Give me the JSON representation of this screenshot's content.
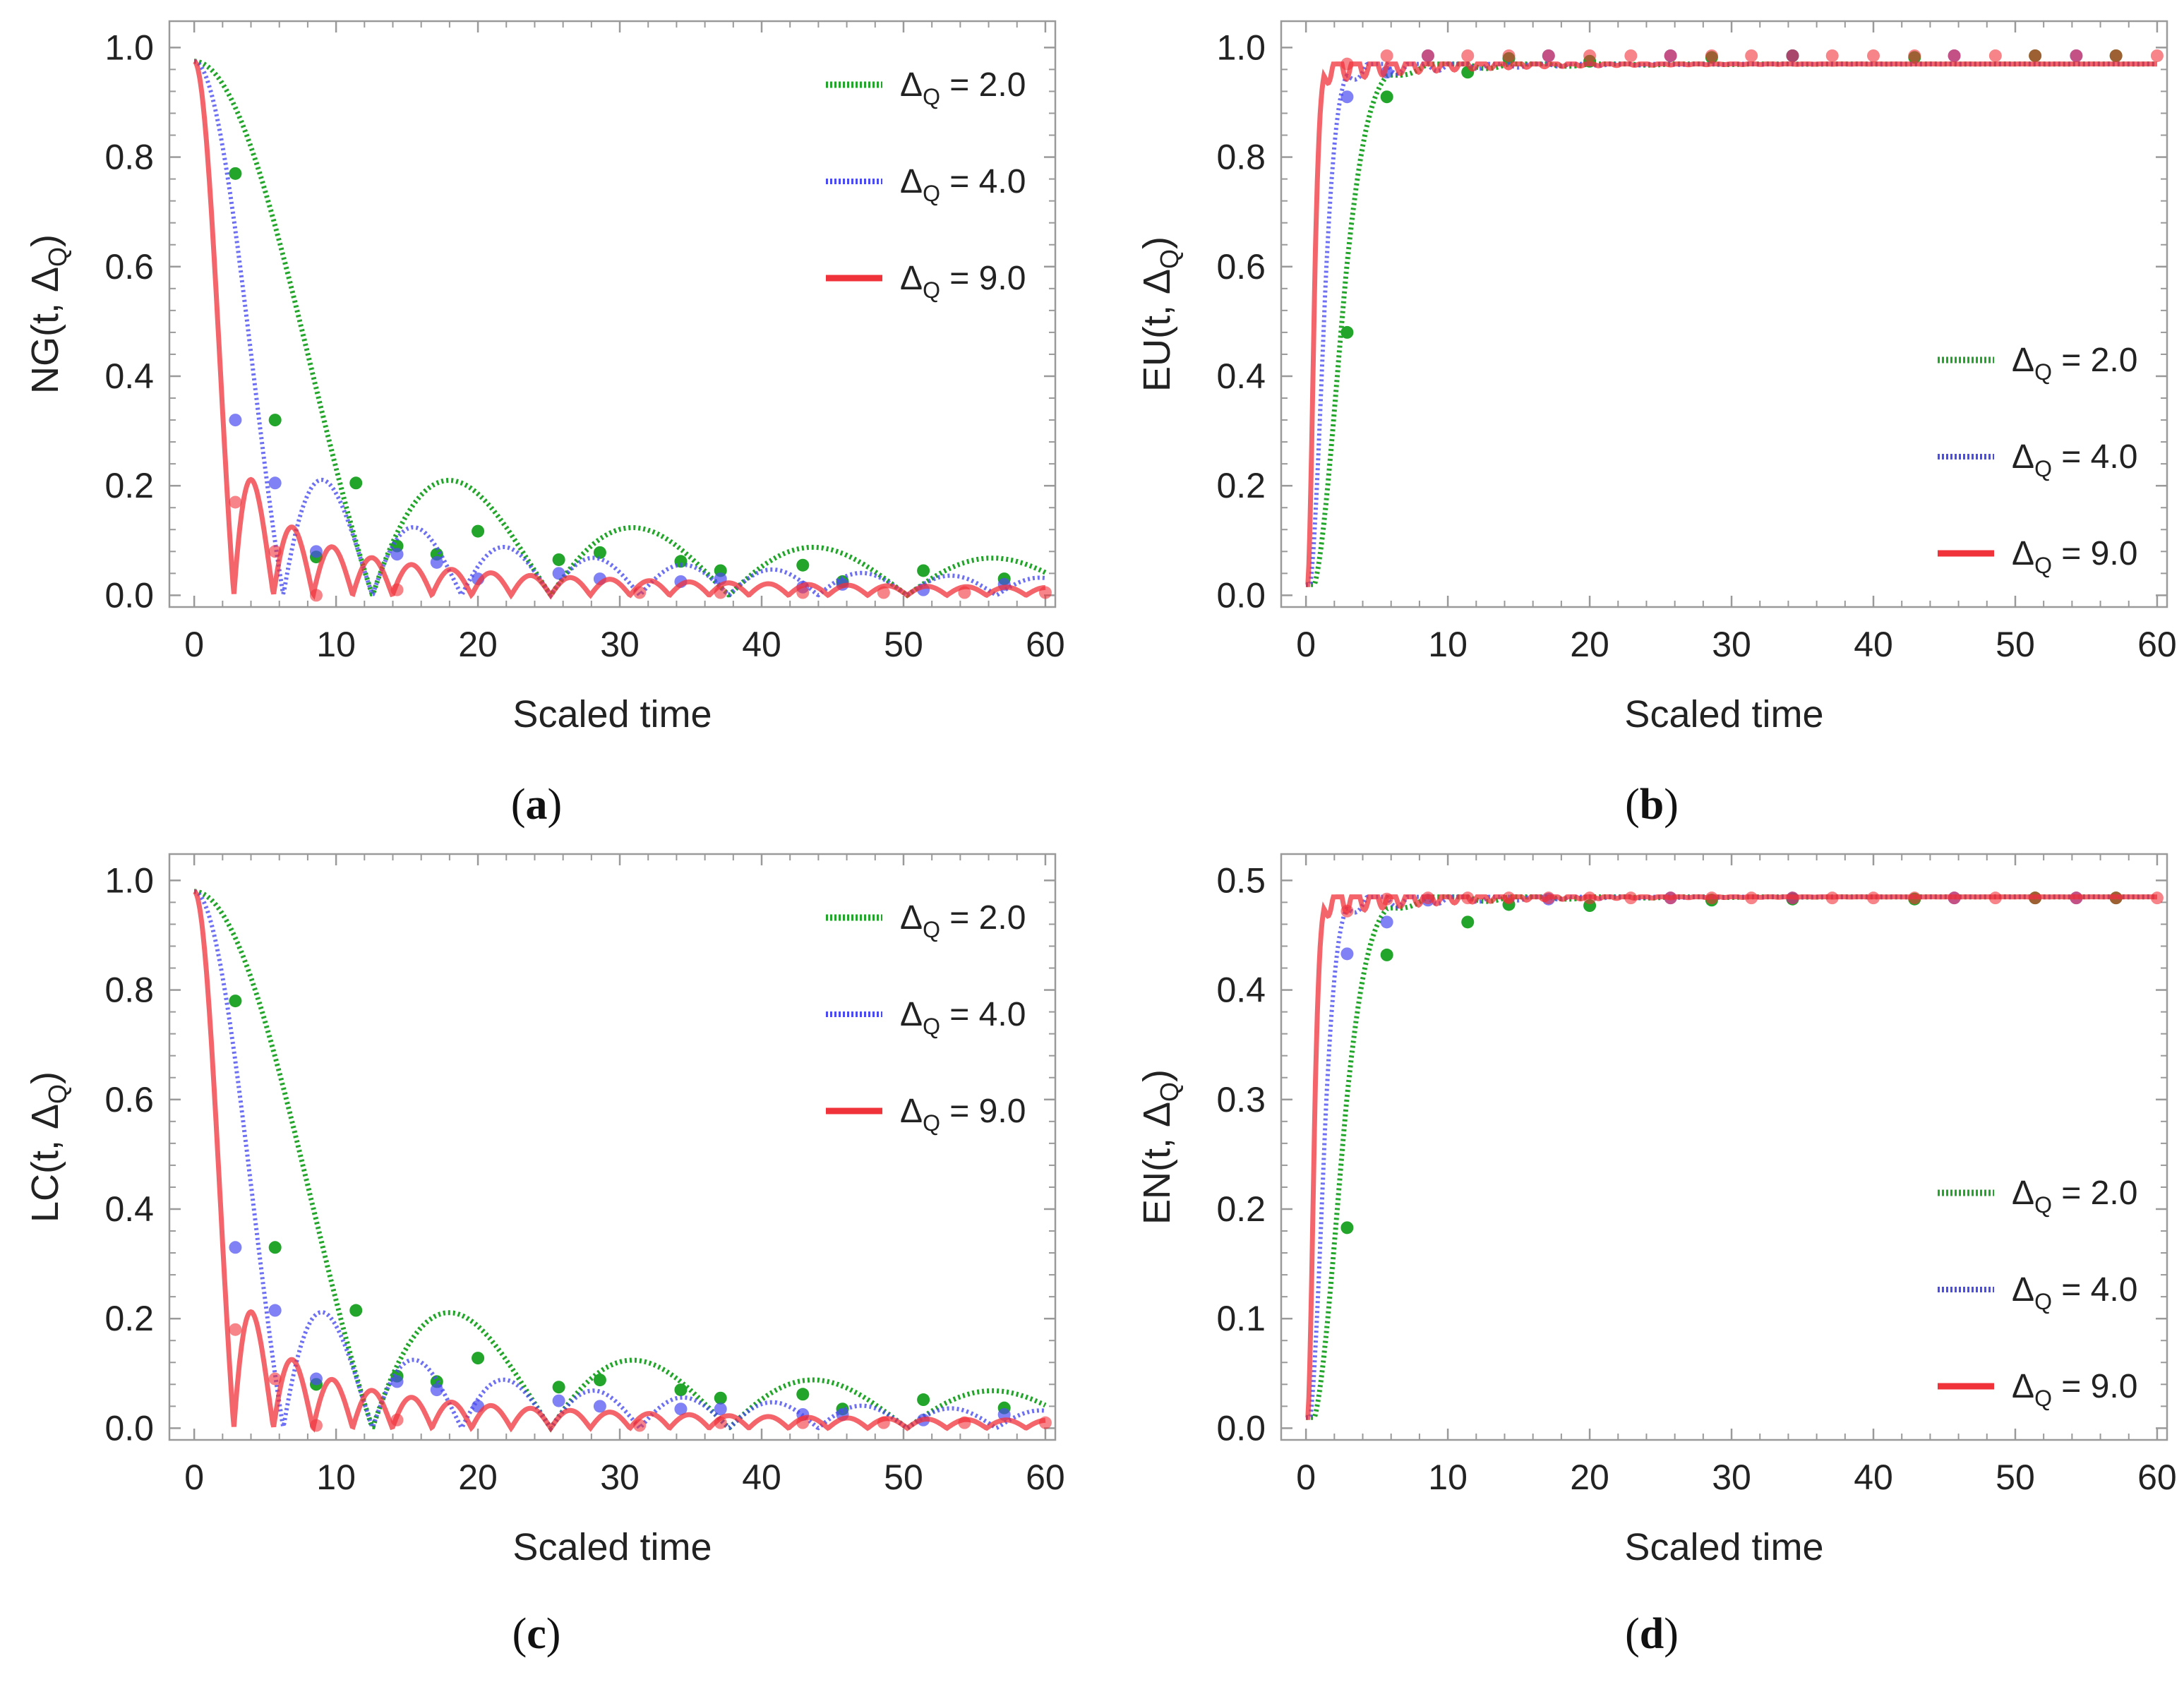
{
  "figure": {
    "colors": {
      "green": "#22a52a",
      "blue": "#4a4cf0",
      "red": "#f0323a",
      "frame": "#9a9a9a",
      "text": "#222222"
    }
  },
  "chart_data": [
    {
      "type": "line",
      "panel_caption": "a",
      "ylabel": "NG(t, Δ",
      "ylabel_sub": "Q",
      "xlabel": "Scaled time",
      "xlim": [
        0,
        60
      ],
      "ylim": [
        0,
        1.0
      ],
      "xticks": [
        "0",
        "10",
        "20",
        "30",
        "40",
        "50",
        "60"
      ],
      "yticks": [
        "0.0",
        "0.2",
        "0.4",
        "0.6",
        "0.8",
        "1.0"
      ],
      "legend_position": "top-right",
      "series": [
        {
          "name": "Δ_Q = 2.0",
          "label_main": "Δ",
          "label_sub": "Q",
          "label_value": " = 2.0",
          "color": "green",
          "style": "dotted",
          "markers": [
            [
              2.9,
              0.77
            ],
            [
              5.7,
              0.32
            ],
            [
              8.6,
              0.07
            ],
            [
              11.4,
              0.205
            ],
            [
              14.3,
              0.09
            ],
            [
              17.1,
              0.075
            ],
            [
              20.0,
              0.117
            ],
            [
              25.7,
              0.065
            ],
            [
              28.6,
              0.078
            ],
            [
              34.3,
              0.062
            ],
            [
              37.1,
              0.045
            ],
            [
              42.9,
              0.055
            ],
            [
              45.7,
              0.025
            ],
            [
              51.4,
              0.045
            ],
            [
              57.1,
              0.03
            ]
          ]
        },
        {
          "name": "Δ_Q = 4.0",
          "label_main": "Δ",
          "label_sub": "Q",
          "label_value": " = 4.0",
          "color": "blue",
          "style": "dotted",
          "markers": [
            [
              2.9,
              0.32
            ],
            [
              5.7,
              0.205
            ],
            [
              8.6,
              0.08
            ],
            [
              14.3,
              0.075
            ],
            [
              17.1,
              0.06
            ],
            [
              20.0,
              0.03
            ],
            [
              25.7,
              0.04
            ],
            [
              28.6,
              0.03
            ],
            [
              34.3,
              0.025
            ],
            [
              37.1,
              0.03
            ],
            [
              42.9,
              0.015
            ],
            [
              45.7,
              0.02
            ],
            [
              51.4,
              0.01
            ],
            [
              57.1,
              0.02
            ]
          ]
        },
        {
          "name": "Δ_Q = 9.0",
          "label_main": "Δ",
          "label_sub": "Q",
          "label_value": " = 9.0",
          "color": "red",
          "style": "solid",
          "markers": [
            [
              2.9,
              0.17
            ],
            [
              5.7,
              0.08
            ],
            [
              8.6,
              0.0
            ],
            [
              14.3,
              0.01
            ],
            [
              31.4,
              0.005
            ],
            [
              37.1,
              0.005
            ],
            [
              42.9,
              0.005
            ],
            [
              48.6,
              0.005
            ],
            [
              54.3,
              0.005
            ],
            [
              60.0,
              0.005
            ]
          ]
        }
      ]
    },
    {
      "type": "line",
      "panel_caption": "b",
      "ylabel": "EU(t, Δ",
      "ylabel_sub": "Q",
      "xlabel": "Scaled time",
      "xlim": [
        0,
        60
      ],
      "ylim": [
        0,
        1.0
      ],
      "xticks": [
        "0",
        "10",
        "20",
        "30",
        "40",
        "50",
        "60"
      ],
      "yticks": [
        "0.0",
        "0.2",
        "0.4",
        "0.6",
        "0.8",
        "1.0"
      ],
      "legend_position": "center-right",
      "series": [
        {
          "name": "Δ_Q = 2.0",
          "label_main": "Δ",
          "label_sub": "Q",
          "label_value": " = 2.0",
          "color": "green",
          "style": "dotted",
          "markers": [
            [
              2.9,
              0.48
            ],
            [
              5.7,
              0.91
            ],
            [
              11.4,
              0.955
            ],
            [
              14.3,
              0.98
            ],
            [
              20.0,
              0.975
            ],
            [
              28.6,
              0.982
            ],
            [
              34.3,
              0.985
            ],
            [
              42.9,
              0.982
            ],
            [
              51.4,
              0.985
            ],
            [
              57.1,
              0.985
            ]
          ]
        },
        {
          "name": "Δ_Q = 4.0",
          "label_main": "Δ",
          "label_sub": "Q",
          "label_value": " = 4.0",
          "color": "blue",
          "style": "dotted",
          "markers": [
            [
              2.9,
              0.91
            ],
            [
              5.7,
              0.955
            ],
            [
              8.6,
              0.985
            ],
            [
              17.1,
              0.985
            ],
            [
              25.7,
              0.985
            ],
            [
              34.3,
              0.985
            ],
            [
              45.7,
              0.985
            ],
            [
              54.3,
              0.985
            ]
          ]
        },
        {
          "name": "Δ_Q = 9.0",
          "label_main": "Δ",
          "label_sub": "Q",
          "label_value": " = 9.0",
          "color": "red",
          "style": "solid",
          "markers": [
            [
              2.9,
              0.97
            ],
            [
              5.7,
              0.985
            ],
            [
              8.6,
              0.985
            ],
            [
              11.4,
              0.985
            ],
            [
              14.3,
              0.985
            ],
            [
              17.1,
              0.985
            ],
            [
              20.0,
              0.985
            ],
            [
              22.9,
              0.985
            ],
            [
              25.7,
              0.985
            ],
            [
              28.6,
              0.985
            ],
            [
              31.4,
              0.985
            ],
            [
              34.3,
              0.985
            ],
            [
              37.1,
              0.985
            ],
            [
              40.0,
              0.985
            ],
            [
              42.9,
              0.985
            ],
            [
              45.7,
              0.985
            ],
            [
              48.6,
              0.985
            ],
            [
              51.4,
              0.985
            ],
            [
              54.3,
              0.985
            ],
            [
              57.1,
              0.985
            ],
            [
              60.0,
              0.985
            ]
          ]
        }
      ]
    },
    {
      "type": "line",
      "panel_caption": "c",
      "ylabel": "LC(t, Δ",
      "ylabel_sub": "Q",
      "xlabel": "Scaled time",
      "xlim": [
        0,
        60
      ],
      "ylim": [
        0,
        1.0
      ],
      "xticks": [
        "0",
        "10",
        "20",
        "30",
        "40",
        "50",
        "60"
      ],
      "yticks": [
        "0.0",
        "0.2",
        "0.4",
        "0.6",
        "0.8",
        "1.0"
      ],
      "legend_position": "top-right",
      "series": [
        {
          "name": "Δ_Q = 2.0",
          "label_main": "Δ",
          "label_sub": "Q",
          "label_value": " = 2.0",
          "color": "green",
          "style": "dotted",
          "markers": [
            [
              2.9,
              0.78
            ],
            [
              5.7,
              0.33
            ],
            [
              8.6,
              0.08
            ],
            [
              11.4,
              0.215
            ],
            [
              14.3,
              0.095
            ],
            [
              17.1,
              0.085
            ],
            [
              20.0,
              0.128
            ],
            [
              25.7,
              0.075
            ],
            [
              28.6,
              0.088
            ],
            [
              34.3,
              0.07
            ],
            [
              37.1,
              0.055
            ],
            [
              42.9,
              0.062
            ],
            [
              45.7,
              0.035
            ],
            [
              51.4,
              0.052
            ],
            [
              57.1,
              0.037
            ]
          ]
        },
        {
          "name": "Δ_Q = 4.0",
          "label_main": "Δ",
          "label_sub": "Q",
          "label_value": " = 4.0",
          "color": "blue",
          "style": "dotted",
          "markers": [
            [
              2.9,
              0.33
            ],
            [
              5.7,
              0.215
            ],
            [
              8.6,
              0.09
            ],
            [
              14.3,
              0.085
            ],
            [
              17.1,
              0.07
            ],
            [
              20.0,
              0.04
            ],
            [
              25.7,
              0.05
            ],
            [
              28.6,
              0.04
            ],
            [
              34.3,
              0.035
            ],
            [
              37.1,
              0.035
            ],
            [
              42.9,
              0.025
            ],
            [
              45.7,
              0.025
            ],
            [
              51.4,
              0.015
            ],
            [
              57.1,
              0.025
            ]
          ]
        },
        {
          "name": "Δ_Q = 9.0",
          "label_main": "Δ",
          "label_sub": "Q",
          "label_value": " = 9.0",
          "color": "red",
          "style": "solid",
          "markers": [
            [
              2.9,
              0.18
            ],
            [
              5.7,
              0.09
            ],
            [
              8.6,
              0.005
            ],
            [
              14.3,
              0.015
            ],
            [
              31.4,
              0.005
            ],
            [
              37.1,
              0.01
            ],
            [
              42.9,
              0.01
            ],
            [
              48.6,
              0.01
            ],
            [
              54.3,
              0.01
            ],
            [
              60.0,
              0.01
            ]
          ]
        }
      ]
    },
    {
      "type": "line",
      "panel_caption": "d",
      "ylabel": "EN(t, Δ",
      "ylabel_sub": "Q",
      "xlabel": "Scaled time",
      "xlim": [
        0,
        60
      ],
      "ylim": [
        0,
        0.5
      ],
      "xticks": [
        "0",
        "10",
        "20",
        "30",
        "40",
        "50",
        "60"
      ],
      "yticks": [
        "0.0",
        "0.1",
        "0.2",
        "0.3",
        "0.4",
        "0.5"
      ],
      "legend_position": "center-right",
      "series": [
        {
          "name": "Δ_Q = 2.0",
          "label_main": "Δ",
          "label_sub": "Q",
          "label_value": " = 2.0",
          "color": "green",
          "style": "dotted",
          "markers": [
            [
              2.9,
              0.183
            ],
            [
              5.7,
              0.432
            ],
            [
              11.4,
              0.462
            ],
            [
              14.3,
              0.478
            ],
            [
              20.0,
              0.477
            ],
            [
              28.6,
              0.482
            ],
            [
              34.3,
              0.483
            ],
            [
              42.9,
              0.483
            ],
            [
              51.4,
              0.484
            ],
            [
              57.1,
              0.484
            ]
          ]
        },
        {
          "name": "Δ_Q = 4.0",
          "label_main": "Δ",
          "label_sub": "Q",
          "label_value": " = 4.0",
          "color": "blue",
          "style": "dotted",
          "markers": [
            [
              2.9,
              0.433
            ],
            [
              5.7,
              0.462
            ],
            [
              8.6,
              0.482
            ],
            [
              17.1,
              0.483
            ],
            [
              25.7,
              0.484
            ],
            [
              34.3,
              0.484
            ],
            [
              45.7,
              0.484
            ],
            [
              54.3,
              0.484
            ]
          ]
        },
        {
          "name": "Δ_Q = 9.0",
          "label_main": "Δ",
          "label_sub": "Q",
          "label_value": " = 9.0",
          "color": "red",
          "style": "solid",
          "markers": [
            [
              2.9,
              0.472
            ],
            [
              5.7,
              0.483
            ],
            [
              8.6,
              0.484
            ],
            [
              11.4,
              0.484
            ],
            [
              14.3,
              0.484
            ],
            [
              17.1,
              0.484
            ],
            [
              20.0,
              0.484
            ],
            [
              22.9,
              0.484
            ],
            [
              25.7,
              0.484
            ],
            [
              28.6,
              0.484
            ],
            [
              31.4,
              0.484
            ],
            [
              34.3,
              0.484
            ],
            [
              37.1,
              0.484
            ],
            [
              40.0,
              0.484
            ],
            [
              42.9,
              0.484
            ],
            [
              45.7,
              0.484
            ],
            [
              48.6,
              0.484
            ],
            [
              51.4,
              0.484
            ],
            [
              54.3,
              0.484
            ],
            [
              57.1,
              0.484
            ],
            [
              60.0,
              0.484
            ]
          ]
        }
      ]
    }
  ]
}
